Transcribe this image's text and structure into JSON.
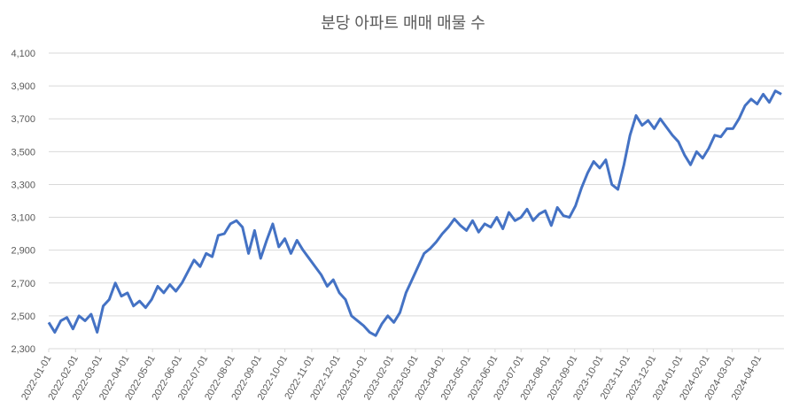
{
  "chart_data": {
    "type": "line",
    "title": "분당 아파트 매매 매물 수",
    "x": [
      "2022-01-01",
      "2022-01-08",
      "2022-01-15",
      "2022-01-22",
      "2022-01-29",
      "2022-02-05",
      "2022-02-12",
      "2022-02-19",
      "2022-02-26",
      "2022-03-05",
      "2022-03-12",
      "2022-03-19",
      "2022-03-26",
      "2022-04-02",
      "2022-04-09",
      "2022-04-16",
      "2022-04-23",
      "2022-04-30",
      "2022-05-07",
      "2022-05-14",
      "2022-05-21",
      "2022-05-28",
      "2022-06-04",
      "2022-06-11",
      "2022-06-18",
      "2022-06-25",
      "2022-07-02",
      "2022-07-09",
      "2022-07-16",
      "2022-07-23",
      "2022-07-30",
      "2022-08-06",
      "2022-08-13",
      "2022-08-20",
      "2022-08-27",
      "2022-09-03",
      "2022-09-10",
      "2022-09-17",
      "2022-09-24",
      "2022-10-01",
      "2022-10-08",
      "2022-10-15",
      "2022-10-22",
      "2022-10-29",
      "2022-11-05",
      "2022-11-12",
      "2022-11-19",
      "2022-11-26",
      "2022-12-03",
      "2022-12-10",
      "2022-12-17",
      "2022-12-24",
      "2022-12-31",
      "2023-01-07",
      "2023-01-14",
      "2023-01-21",
      "2023-01-28",
      "2023-02-04",
      "2023-02-11",
      "2023-02-18",
      "2023-02-25",
      "2023-03-04",
      "2023-03-11",
      "2023-03-18",
      "2023-03-25",
      "2023-04-01",
      "2023-04-08",
      "2023-04-15",
      "2023-04-22",
      "2023-04-29",
      "2023-05-06",
      "2023-05-13",
      "2023-05-20",
      "2023-05-27",
      "2023-06-03",
      "2023-06-10",
      "2023-06-17",
      "2023-06-24",
      "2023-07-01",
      "2023-07-08",
      "2023-07-15",
      "2023-07-22",
      "2023-07-29",
      "2023-08-05",
      "2023-08-12",
      "2023-08-19",
      "2023-08-26",
      "2023-09-02",
      "2023-09-09",
      "2023-09-16",
      "2023-09-23",
      "2023-09-30",
      "2023-10-07",
      "2023-10-14",
      "2023-10-21",
      "2023-10-28",
      "2023-11-04",
      "2023-11-11",
      "2023-11-18",
      "2023-11-25",
      "2023-12-02",
      "2023-12-09",
      "2023-12-16",
      "2023-12-23",
      "2023-12-30",
      "2024-01-06",
      "2024-01-13",
      "2024-01-20",
      "2024-01-27",
      "2024-02-03",
      "2024-02-10",
      "2024-02-17",
      "2024-02-24",
      "2024-03-02",
      "2024-03-09",
      "2024-03-16",
      "2024-03-23",
      "2024-03-30",
      "2024-04-06",
      "2024-04-13",
      "2024-04-20",
      "2024-04-27"
    ],
    "series": [
      {
        "color": "#4472c4",
        "values": [
          2460,
          2400,
          2470,
          2490,
          2420,
          2500,
          2470,
          2510,
          2400,
          2560,
          2600,
          2700,
          2620,
          2640,
          2560,
          2590,
          2550,
          2600,
          2680,
          2640,
          2690,
          2650,
          2700,
          2770,
          2840,
          2800,
          2880,
          2860,
          2990,
          3000,
          3060,
          3080,
          3040,
          2880,
          3020,
          2850,
          2960,
          3060,
          2920,
          2970,
          2880,
          2960,
          2900,
          2850,
          2800,
          2750,
          2680,
          2720,
          2640,
          2600,
          2500,
          2470,
          2440,
          2400,
          2380,
          2450,
          2500,
          2460,
          2520,
          2640,
          2720,
          2800,
          2880,
          2910,
          2950,
          3000,
          3040,
          3090,
          3050,
          3020,
          3080,
          3010,
          3060,
          3040,
          3100,
          3030,
          3130,
          3080,
          3100,
          3150,
          3080,
          3120,
          3140,
          3050,
          3160,
          3110,
          3100,
          3170,
          3280,
          3370,
          3440,
          3400,
          3450,
          3300,
          3270,
          3420,
          3600,
          3720,
          3660,
          3690,
          3640,
          3700,
          3650,
          3600,
          3560,
          3480,
          3420,
          3500,
          3460,
          3520,
          3600,
          3590,
          3640,
          3640,
          3700,
          3780,
          3820,
          3790,
          3850,
          3800,
          3870,
          3850
        ]
      }
    ],
    "xlim": [
      "2022-01-01",
      "2024-04-30"
    ],
    "xticks": [
      "2022-01-01",
      "2022-02-01",
      "2022-03-01",
      "2022-04-01",
      "2022-05-01",
      "2022-06-01",
      "2022-07-01",
      "2022-08-01",
      "2022-09-01",
      "2022-10-01",
      "2022-11-01",
      "2022-12-01",
      "2023-01-01",
      "2023-02-01",
      "2023-03-01",
      "2023-04-01",
      "2023-05-01",
      "2023-06-01",
      "2023-07-01",
      "2023-08-01",
      "2023-09-01",
      "2023-10-01",
      "2023-11-01",
      "2023-12-01",
      "2024-01-01",
      "2024-02-01",
      "2024-03-01",
      "2024-04-01"
    ],
    "ylim": [
      2300,
      4100
    ],
    "yticks": [
      {
        "value": 2300,
        "label": "2,300"
      },
      {
        "value": 2500,
        "label": "2,500"
      },
      {
        "value": 2700,
        "label": "2,700"
      },
      {
        "value": 2900,
        "label": "2,900"
      },
      {
        "value": 3100,
        "label": "3,100"
      },
      {
        "value": 3300,
        "label": "3,300"
      },
      {
        "value": 3500,
        "label": "3,500"
      },
      {
        "value": 3700,
        "label": "3,700"
      },
      {
        "value": 3900,
        "label": "3,900"
      },
      {
        "value": 4100,
        "label": "4,100"
      }
    ],
    "grid": true
  }
}
